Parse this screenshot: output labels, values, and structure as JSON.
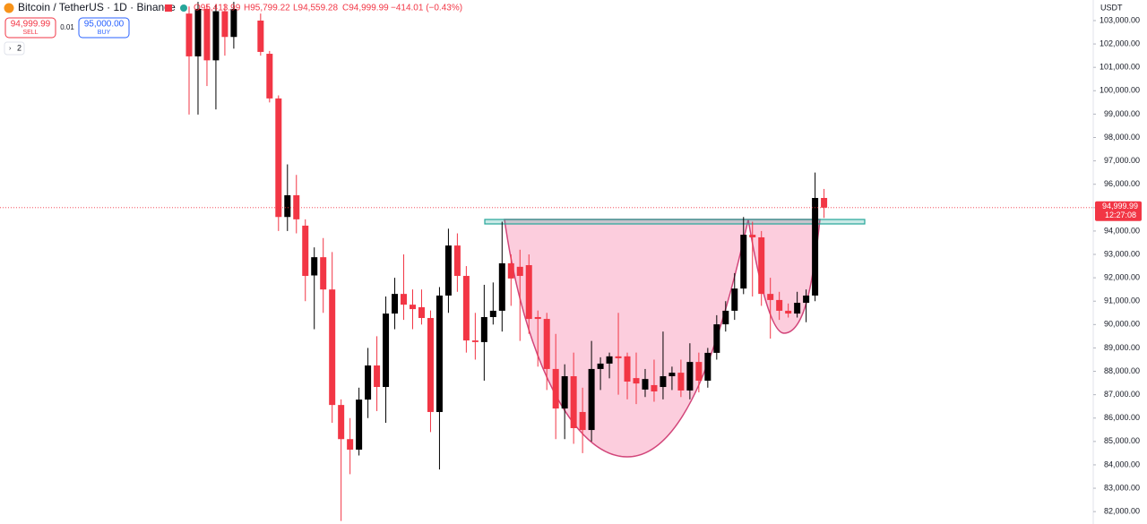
{
  "chart_data": {
    "type": "candlestick",
    "title": "Bitcoin / TetherUS · 1D · Binance",
    "ohlc_text": [
      "O95,413.99",
      "H95,799.22",
      "L94,559.28",
      "C94,999.99",
      "−414.01 (−0.43%)"
    ],
    "sell_price": "94,999.99",
    "sell_label": "SELL",
    "spread": "0.01",
    "buy_price": "95,000.00",
    "buy_label": "BUY",
    "indicator_count": "2",
    "currency": "USDT",
    "last_price": {
      "value": 94999.99,
      "label": "94,999.99"
    },
    "countdown": "12:27:08",
    "up_color": "#000000",
    "down_color": "#f23645",
    "ylim": [
      81470,
      103880
    ],
    "yticks": [
      {
        "value": 103000,
        "label": "103,000.00"
      },
      {
        "value": 102000,
        "label": "102,000.00"
      },
      {
        "value": 101000,
        "label": "101,000.00"
      },
      {
        "value": 100000,
        "label": "100,000.00"
      },
      {
        "value": 99000,
        "label": "99,000.00"
      },
      {
        "value": 98000,
        "label": "98,000.00"
      },
      {
        "value": 97000,
        "label": "97,000.00"
      },
      {
        "value": 96000,
        "label": "96,000.00"
      },
      {
        "value": 95000,
        "label": "95,000.00"
      },
      {
        "value": 94000,
        "label": "94,000.00"
      },
      {
        "value": 93000,
        "label": "93,000.00"
      },
      {
        "value": 92000,
        "label": "92,000.00"
      },
      {
        "value": 91000,
        "label": "91,000.00"
      },
      {
        "value": 90000,
        "label": "90,000.00"
      },
      {
        "value": 89000,
        "label": "89,000.00"
      },
      {
        "value": 88000,
        "label": "88,000.00"
      },
      {
        "value": 87000,
        "label": "87,000.00"
      },
      {
        "value": 86000,
        "label": "86,000.00"
      },
      {
        "value": 85000,
        "label": "85,000.00"
      },
      {
        "value": 84000,
        "label": "84,000.00"
      },
      {
        "value": 83000,
        "label": "83,000.00"
      },
      {
        "value": 82000,
        "label": "82,000.00"
      }
    ],
    "open": [
      103300,
      101470,
      103500,
      101300,
      103400,
      102300,
      null,
      null,
      103000,
      101580,
      99670,
      94600,
      95530,
      94230,
      92100,
      92880,
      91500,
      86560,
      85100,
      84650,
      86790,
      88250,
      87330,
      90470,
      91310,
      90850,
      90740,
      90280,
      86260,
      91240,
      93380,
      92080,
      89320,
      89250,
      90320,
      90590,
      92620,
      92470,
      92540,
      90320,
      90240,
      88100,
      86410,
      87790,
      86260,
      85490,
      88100,
      88330,
      88640,
      88640,
      87710,
      87220,
      87410,
      87330,
      87790,
      87940,
      87180,
      88400,
      87600,
      88790,
      90010,
      90590,
      91540,
      93840,
      93730,
      91310,
      91050,
      90590,
      90470,
      90930,
      91240,
      95413.99
    ],
    "high": [
      103600,
      103800,
      103700,
      103700,
      103700,
      103800,
      null,
      null,
      103300,
      101700,
      99800,
      96850,
      96400,
      94500,
      93300,
      93700,
      93100,
      86800,
      86000,
      87300,
      89000,
      89500,
      91200,
      92000,
      93000,
      91500,
      91500,
      90600,
      91600,
      94100,
      93900,
      92500,
      90500,
      91700,
      91800,
      94400,
      93000,
      93200,
      93000,
      90600,
      90500,
      89600,
      88300,
      88800,
      87300,
      89300,
      88600,
      88800,
      90500,
      88800,
      88800,
      88100,
      88500,
      89700,
      88200,
      88500,
      89200,
      88800,
      89000,
      90400,
      91000,
      92200,
      94600,
      94400,
      94000,
      92000,
      91400,
      90900,
      91400,
      91500,
      96500,
      95799.22
    ],
    "low": [
      98980,
      98980,
      100200,
      99200,
      101500,
      101800,
      null,
      null,
      101500,
      99500,
      94000,
      94000,
      93900,
      91000,
      89800,
      90500,
      85800,
      81600,
      83600,
      84400,
      86000,
      86300,
      85800,
      89800,
      90200,
      89800,
      90000,
      85400,
      83800,
      90500,
      91400,
      88800,
      88500,
      87600,
      90000,
      89700,
      90800,
      89300,
      89600,
      88200,
      87200,
      85100,
      85100,
      84900,
      84500,
      85000,
      87200,
      87700,
      87000,
      86800,
      86600,
      86900,
      86700,
      86800,
      87200,
      86900,
      86800,
      87100,
      87300,
      88500,
      89700,
      90200,
      91300,
      91200,
      90800,
      89400,
      90200,
      90300,
      90300,
      90100,
      91000,
      94559.28
    ],
    "close": [
      101470,
      103500,
      101300,
      103400,
      102300,
      103500,
      null,
      null,
      101660,
      99670,
      94600,
      95530,
      94500,
      92080,
      92880,
      91500,
      86560,
      85100,
      84650,
      86790,
      88250,
      87330,
      90470,
      91310,
      90850,
      90660,
      90280,
      86260,
      91240,
      93380,
      92080,
      89320,
      89250,
      90320,
      90590,
      92620,
      91970,
      92080,
      90240,
      90240,
      88100,
      86410,
      87790,
      85570,
      85490,
      88100,
      88330,
      88640,
      88560,
      87560,
      87480,
      87670,
      87140,
      87790,
      87940,
      87180,
      88400,
      87600,
      88790,
      90010,
      90590,
      91540,
      93840,
      93730,
      91310,
      91050,
      90590,
      90470,
      90930,
      91240,
      95413.99,
      94999.99
    ]
  }
}
